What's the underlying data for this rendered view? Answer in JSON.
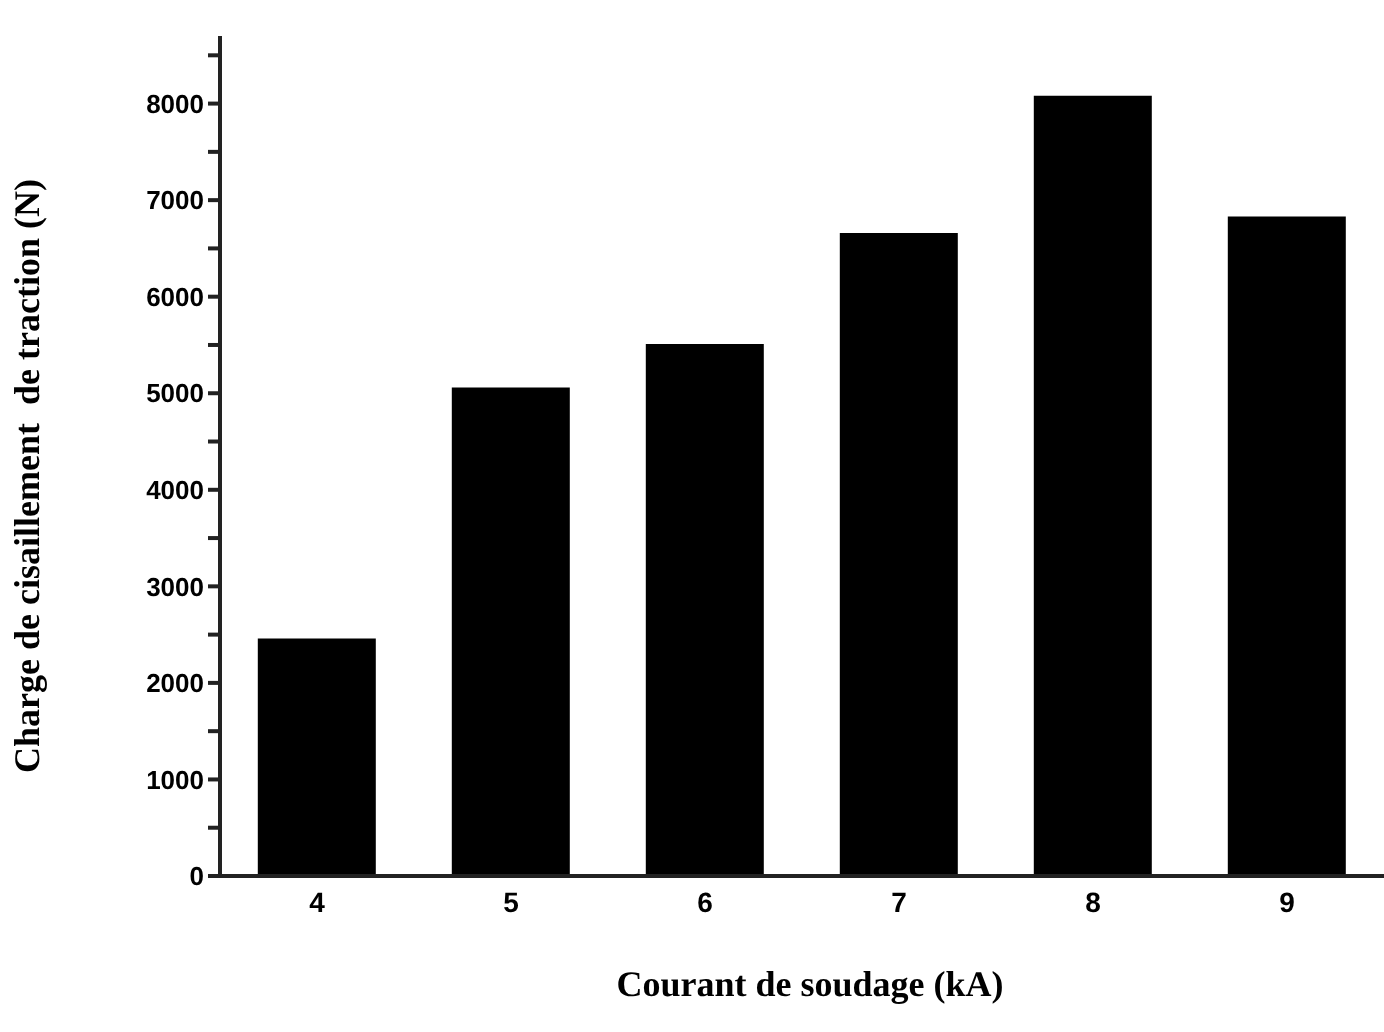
{
  "chart_data": {
    "type": "bar",
    "xlabel": "Courant de soudage (kA)",
    "ylabel": "Charge de cisaillement  de traction (N)",
    "categories": [
      "4",
      "5",
      "6",
      "7",
      "8",
      "9"
    ],
    "values": [
      2450,
      5050,
      5500,
      6650,
      8070,
      6820
    ],
    "color": "#000000",
    "ylim": [
      0,
      8700
    ],
    "yticks": [
      0,
      {
        "value": 500,
        "label": null
      },
      1000,
      {
        "value": 1500,
        "label": null
      },
      2000,
      {
        "value": 2500,
        "label": null
      },
      3000,
      {
        "value": 3500,
        "label": null
      },
      4000,
      {
        "value": 4500,
        "label": null
      },
      5000,
      {
        "value": 5500,
        "label": null
      },
      6000,
      {
        "value": 6500,
        "label": null
      },
      7000,
      {
        "value": 7500,
        "label": null
      },
      8000,
      {
        "value": 8500,
        "label": null
      }
    ],
    "grid": false,
    "legend": false
  }
}
